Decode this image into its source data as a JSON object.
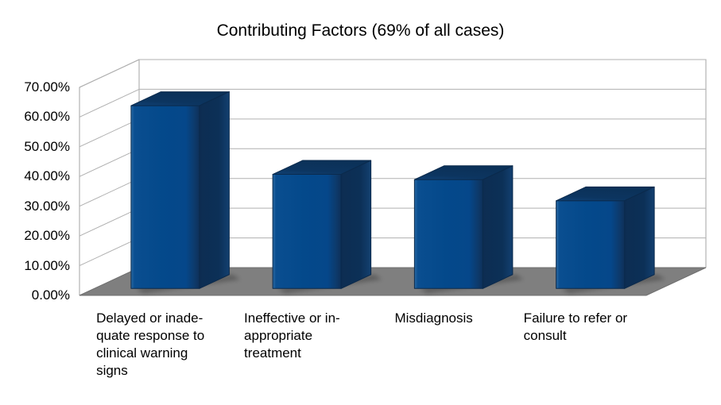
{
  "title": "Contributing Factors (69% of all cases)",
  "chart_data": {
    "type": "bar",
    "projection": "3d",
    "title": "Contributing Factors (69% of all cases)",
    "xlabel": "",
    "ylabel": "",
    "ylim": [
      0,
      70
    ],
    "tick_step": 10,
    "grid": true,
    "legend": "none",
    "categories": [
      "Delayed or inadequate response to clinical warning signs",
      "Ineffective or inappropriate treatment",
      "Misdiagnosis",
      "Failure to refer or consult"
    ],
    "category_lines": [
      [
        "Delayed or inade-",
        "quate response to",
        "clinical warning",
        "signs"
      ],
      [
        "Ineffective or in-",
        "appropriate",
        "treatment"
      ],
      [
        "Misdiagnosis"
      ],
      [
        "Failure to refer or",
        "consult"
      ]
    ],
    "values": [
      61.5,
      38.4,
      36.6,
      29.5
    ],
    "y_ticks": [
      {
        "value": 70,
        "label": "70.00%"
      },
      {
        "value": 60,
        "label": "60.00%"
      },
      {
        "value": 50,
        "label": "50.00%"
      },
      {
        "value": 40,
        "label": "40.00%"
      },
      {
        "value": 30,
        "label": "30.00%"
      },
      {
        "value": 20,
        "label": "20.00%"
      },
      {
        "value": 10,
        "label": "10.00%"
      },
      {
        "value": 0,
        "label": "0.00%"
      }
    ],
    "colors": {
      "bar_front": "#04498b",
      "bar_front_edge_light": "#2a6aa3",
      "bar_front_edge_dark": "#0e3059",
      "bar_top": "#0c3560",
      "bar_side_dark": "#0d2d52",
      "bar_side_light": "#134070",
      "bar_outline": "#0b2a4c",
      "floor": "#7f7f7f",
      "floor_edge": "#6f6f6f",
      "grid": "#b0b0b0",
      "wall_edge": "#a3a3a3",
      "background": "#ffffff",
      "text": "#000000"
    }
  }
}
